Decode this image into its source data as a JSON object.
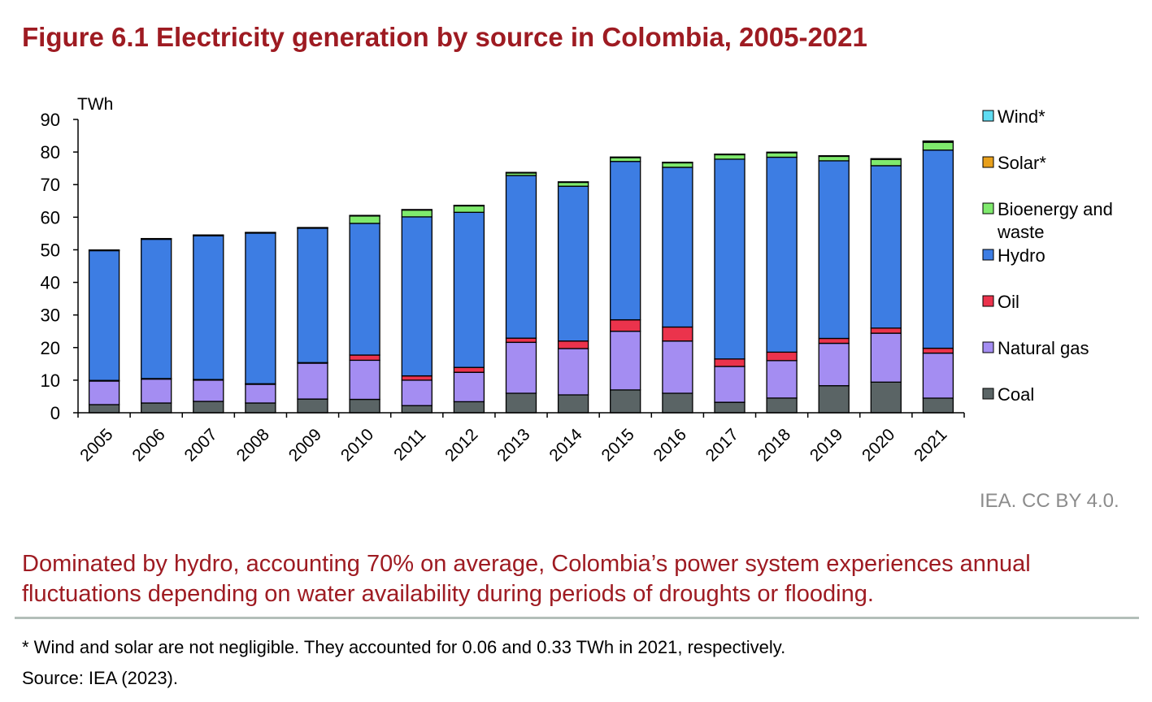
{
  "figure": {
    "title": "Figure 6.1 Electricity generation by source in Colombia, 2005-2021",
    "credit": "IEA. CC BY 4.0.",
    "caption": "Dominated by hydro, accounting 70% on average, Colombia’s power system experiences annual fluctuations depending on water availability during periods of droughts or flooding.",
    "note": "* Wind and solar are not negligible. They accounted for 0.06 and 0.33 TWh in 2021, respectively.",
    "source": "Source: IEA (2023)."
  },
  "chart_data": {
    "type": "bar",
    "stacked": true,
    "title": "Figure 6.1 Electricity generation by source in Colombia, 2005-2021",
    "ylabel": "TWh",
    "ylim": [
      0,
      90
    ],
    "yticks": [
      0,
      10,
      20,
      30,
      40,
      50,
      60,
      70,
      80,
      90
    ],
    "grid": false,
    "legend_position": "right",
    "categories": [
      "2005",
      "2006",
      "2007",
      "2008",
      "2009",
      "2010",
      "2011",
      "2012",
      "2013",
      "2014",
      "2015",
      "2016",
      "2017",
      "2018",
      "2019",
      "2020",
      "2021"
    ],
    "series": [
      {
        "name": "Coal",
        "color": "#5a6465",
        "values": [
          2.5,
          3.0,
          3.5,
          3.0,
          4.2,
          4.1,
          2.2,
          3.4,
          6.0,
          5.5,
          7.0,
          6.0,
          3.2,
          4.5,
          8.3,
          9.4,
          4.5
        ]
      },
      {
        "name": "Natural gas",
        "color": "#a48df2",
        "values": [
          7.3,
          7.4,
          6.6,
          5.8,
          11.0,
          12.0,
          7.8,
          9.0,
          15.6,
          14.2,
          18.0,
          16.0,
          11.0,
          11.5,
          13.0,
          15.0,
          13.8
        ]
      },
      {
        "name": "Oil",
        "color": "#eb334c",
        "values": [
          0.1,
          0.1,
          0.1,
          0.1,
          0.2,
          1.6,
          1.3,
          1.5,
          1.3,
          2.3,
          3.5,
          4.3,
          2.3,
          2.6,
          1.5,
          1.6,
          1.5
        ]
      },
      {
        "name": "Hydro",
        "color": "#3d7de3",
        "values": [
          39.9,
          42.8,
          44.2,
          46.3,
          41.3,
          40.4,
          48.8,
          47.6,
          49.9,
          47.5,
          48.6,
          49.0,
          61.3,
          59.8,
          54.5,
          49.8,
          60.8
        ]
      },
      {
        "name": "Bioenergy and waste",
        "color": "#7fea6d",
        "values": [
          0.1,
          0.1,
          0.1,
          0.1,
          0.1,
          2.4,
          2.2,
          2.1,
          0.9,
          1.3,
          1.3,
          1.5,
          1.5,
          1.5,
          1.5,
          2.0,
          2.4
        ]
      },
      {
        "name": "Solar*",
        "color": "#e8a01c",
        "values": [
          0,
          0,
          0,
          0,
          0,
          0,
          0,
          0,
          0,
          0,
          0,
          0,
          0,
          0,
          0,
          0.1,
          0.33
        ]
      },
      {
        "name": "Wind*",
        "color": "#5fdcf2",
        "values": [
          0.05,
          0.05,
          0.05,
          0.05,
          0.05,
          0.05,
          0.05,
          0.05,
          0.05,
          0.05,
          0.05,
          0.05,
          0.05,
          0.05,
          0.05,
          0.05,
          0.06
        ]
      }
    ]
  }
}
